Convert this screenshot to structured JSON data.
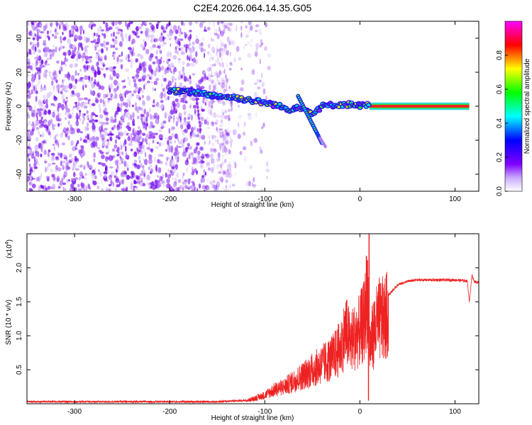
{
  "title": "C2E4.2026.064.14.35.G05",
  "chart_data": [
    {
      "type": "heatmap",
      "xlabel": "Height of straight line (km)",
      "ylabel": "Frequency (Hz)",
      "xlim": [
        -350,
        125
      ],
      "ylim": [
        -50,
        50
      ],
      "xticks": [
        -300,
        -200,
        -100,
        0,
        100
      ],
      "yticks": [
        -40,
        -20,
        0,
        20,
        40
      ],
      "noise_region_x": [
        -350,
        -135
      ],
      "signal_track": [
        {
          "x": -200,
          "y": 9
        },
        {
          "x": -170,
          "y": 8
        },
        {
          "x": -150,
          "y": 6
        },
        {
          "x": -130,
          "y": 5
        },
        {
          "x": -110,
          "y": 3
        },
        {
          "x": -90,
          "y": 1
        },
        {
          "x": -75,
          "y": -2
        },
        {
          "x": -65,
          "y": 0
        },
        {
          "x": -50,
          "y": -4
        },
        {
          "x": -40,
          "y": 0
        },
        {
          "x": -25,
          "y": 1
        },
        {
          "x": -10,
          "y": 1
        },
        {
          "x": 0,
          "y": 0.5
        },
        {
          "x": 10,
          "y": 0.5
        },
        {
          "x": 50,
          "y": 0
        },
        {
          "x": 115,
          "y": 0
        }
      ],
      "colorbar": {
        "label": "Normalized spectral amplitude",
        "range": [
          0,
          1
        ],
        "ticks": [
          0.0,
          0.2,
          0.4,
          0.6,
          0.8
        ],
        "colors": [
          "#ffffff",
          "#7f00ff",
          "#0000ff",
          "#00ffff",
          "#00ff00",
          "#ffff00",
          "#ff0000",
          "#ff00ff"
        ]
      }
    },
    {
      "type": "line",
      "xlabel": "Height of straight line (km)",
      "ylabel": "SNR (10 * v/v)",
      "y_multiplier": "(x10",
      "y_multiplier_exp": "4",
      "y_multiplier_close": ")",
      "xlim": [
        -350,
        125
      ],
      "ylim": [
        0,
        2.5
      ],
      "xticks": [
        -300,
        -200,
        -100,
        0,
        100
      ],
      "yticks": [
        0.5,
        1.0,
        1.5,
        2.0
      ],
      "line_color": "#ee2222",
      "series": [
        {
          "name": "SNR",
          "x": [
            -350,
            -300,
            -250,
            -200,
            -150,
            -120,
            -100,
            -90,
            -80,
            -70,
            -60,
            -50,
            -40,
            -30,
            -20,
            -15,
            -10,
            -5,
            0,
            5,
            8,
            10,
            15,
            20,
            25,
            30,
            40,
            50,
            60,
            80,
            100,
            110,
            113,
            115,
            118,
            120,
            125
          ],
          "y": [
            0.03,
            0.03,
            0.03,
            0.03,
            0.03,
            0.05,
            0.15,
            0.25,
            0.3,
            0.4,
            0.5,
            0.6,
            0.7,
            0.8,
            1.0,
            1.3,
            1.1,
            1.2,
            1.3,
            1.5,
            2.1,
            1.0,
            1.3,
            1.5,
            1.5,
            1.6,
            1.75,
            1.8,
            1.82,
            1.82,
            1.82,
            1.81,
            1.8,
            1.5,
            1.9,
            1.8,
            1.78
          ]
        }
      ]
    }
  ]
}
